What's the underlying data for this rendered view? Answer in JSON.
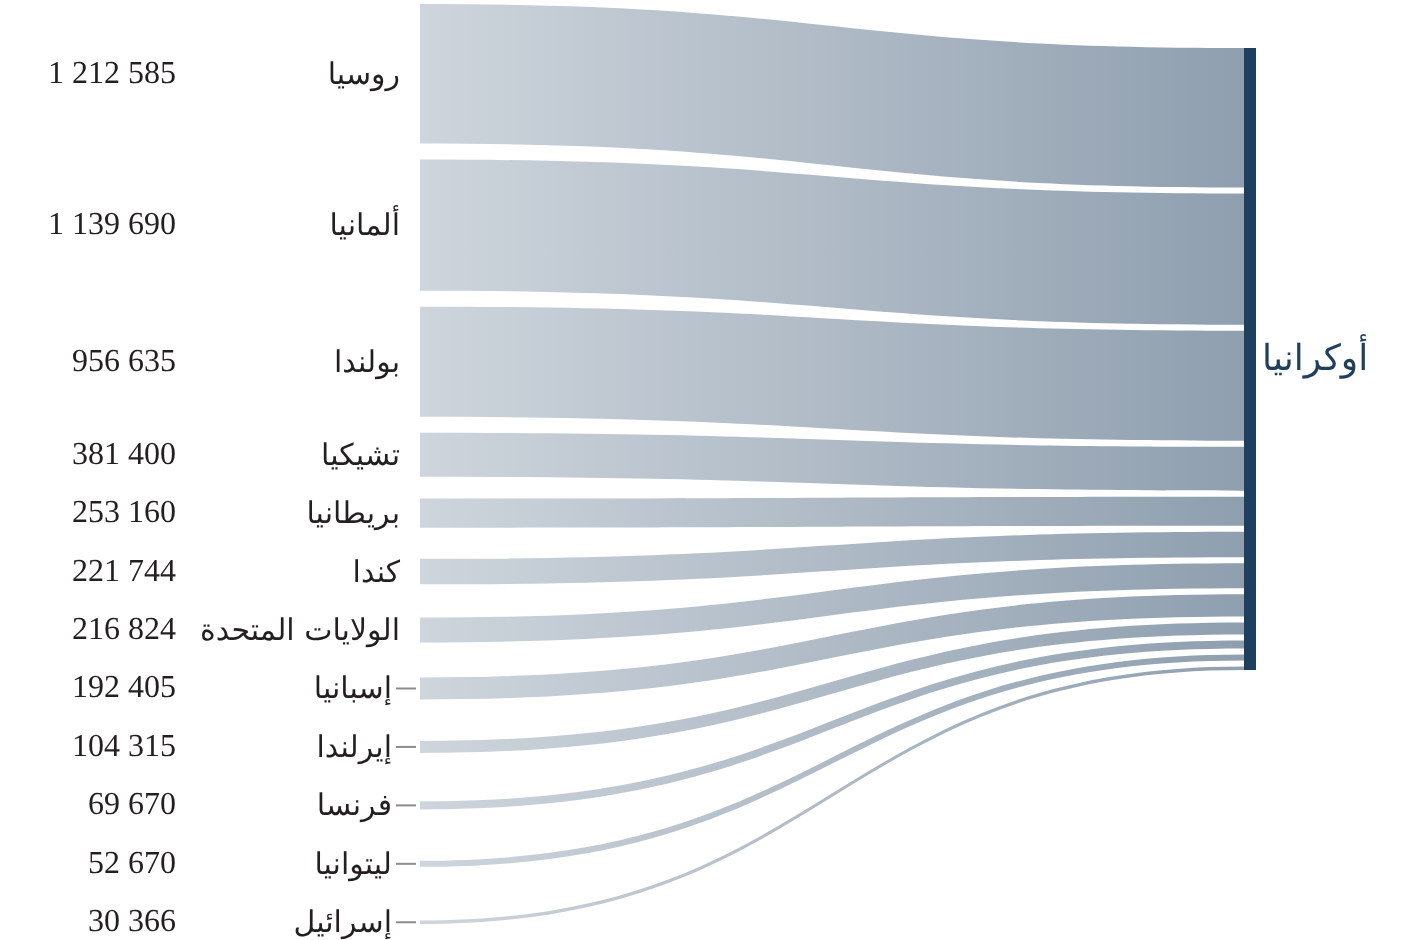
{
  "chart_data": {
    "type": "other",
    "categories": [
      "روسيا",
      "ألمانيا",
      "بولندا",
      "تشيكيا",
      "بريطانيا",
      "كندا",
      "الولايات المتحدة",
      "إسبانيا",
      "إيرلندا",
      "فرنسا",
      "ليتوانيا",
      "إسرائيل"
    ],
    "series": [
      {
        "name": "أوكرانيا",
        "color": "#1f3f5f",
        "values": [
          1212585,
          1139690,
          956635,
          381400,
          253160,
          221744,
          216824,
          192405,
          104315,
          69670,
          52670,
          30366
        ],
        "value_labels": [
          "1 212 585",
          "1 139 690",
          "956 635",
          "381 400",
          "253 160",
          "221 744",
          "216 824",
          "192 405",
          "104 315",
          "69 670",
          "52 670",
          "30 366"
        ]
      }
    ]
  }
}
